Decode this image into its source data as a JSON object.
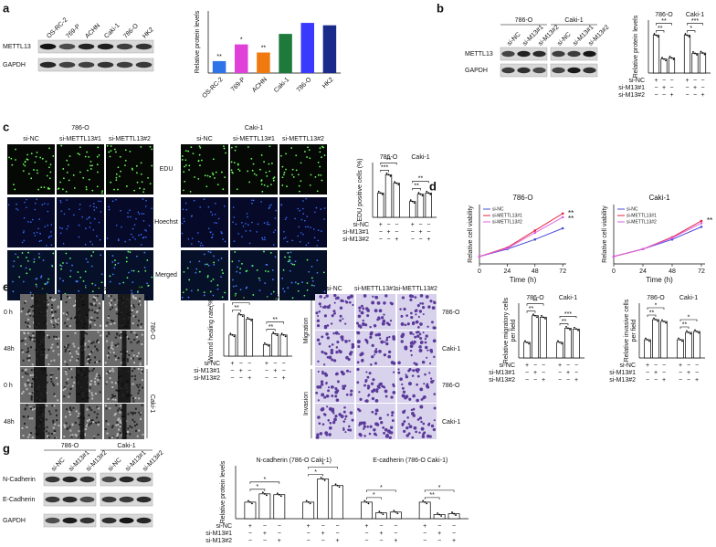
{
  "conditions": [
    {
      "name": "si-NC",
      "signs": [
        "+",
        "−",
        "−"
      ]
    },
    {
      "name": "si-M13#1",
      "signs": [
        "−",
        "+",
        "−"
      ]
    },
    {
      "name": "si-M13#2",
      "signs": [
        "−",
        "−",
        "+"
      ]
    }
  ],
  "a": {
    "label": "a",
    "blot": {
      "lanes": [
        "OS-RC-2",
        "769-P",
        "ACHN",
        "Caki-1",
        "786-O",
        "HK2"
      ],
      "rows": [
        "METTL13",
        "GAPDH"
      ]
    },
    "chart": {
      "type": "bar",
      "ylabel": "Relative protein levels",
      "categories": [
        "OS-RC-2",
        "769-P",
        "ACHN",
        "Caki-1",
        "786-O",
        "HK2"
      ],
      "values": [
        0.25,
        0.6,
        0.43,
        0.82,
        1.05,
        1.0
      ],
      "colors": [
        "#2e74e8",
        "#e040d8",
        "#f07a10",
        "#1e7a3a",
        "#3a3aff",
        "#1a2a8a"
      ],
      "stars": [
        "**",
        "*",
        "**",
        null,
        null,
        null
      ],
      "ylim": [
        0,
        1.3
      ]
    }
  },
  "b": {
    "label": "b",
    "blot": {
      "groups": [
        "786-O",
        "Caki-1"
      ],
      "lanes": [
        "si-NC",
        "si-M13#1",
        "si-M13#2"
      ],
      "rows": [
        "METTL13",
        "GAPDH"
      ]
    },
    "chart": {
      "type": "grouped-bar",
      "ylabel": "Relative protein levels",
      "groups": [
        "786-O",
        "Caki-1"
      ],
      "values": [
        [
          1.0,
          0.37,
          0.4
        ],
        [
          1.0,
          0.52,
          0.53
        ]
      ],
      "stars": [
        [
          "**",
          "**"
        ],
        [
          "*",
          "***"
        ]
      ],
      "ylim": [
        0,
        1.4
      ],
      "bar_fill": "#ffffff"
    }
  },
  "c": {
    "label": "c",
    "images": {
      "groups": [
        "786-O",
        "Caki-1"
      ],
      "columns": [
        "si-NC",
        "si-METTL13#1",
        "si-METTL13#2"
      ],
      "rows": [
        "EDU",
        "Hoechst",
        "Merged"
      ]
    },
    "chart": {
      "type": "grouped-bar",
      "ylabel": "EDU positive cells (%)",
      "groups": [
        "786-O",
        "Caki-1"
      ],
      "values": [
        [
          20,
          35,
          28
        ],
        [
          13,
          19,
          20
        ]
      ],
      "stars": [
        [
          "***",
          "**"
        ],
        [
          "**",
          "**"
        ]
      ],
      "ylim": [
        0,
        45
      ],
      "bar_fill": "#ffffff"
    }
  },
  "d": {
    "label": "d",
    "charts": [
      {
        "type": "line",
        "title": "786-O",
        "xlabel": "Time (h)",
        "ylabel": "Relative cell viability",
        "x": [
          0,
          24,
          48,
          72
        ],
        "xlim": [
          0,
          75
        ],
        "xticks": [
          0,
          24,
          48,
          72
        ],
        "ylim": [
          0,
          0.8
        ],
        "series": [
          {
            "name": "si-NC",
            "color": "#4a4ad8",
            "values": [
              0.1,
              0.2,
              0.33,
              0.48
            ]
          },
          {
            "name": "si-METTL13#1",
            "color": "#e02040",
            "values": [
              0.1,
              0.22,
              0.45,
              0.68
            ]
          },
          {
            "name": "si-METTL13#2",
            "color": "#e060e0",
            "values": [
              0.1,
              0.21,
              0.42,
              0.63
            ]
          }
        ],
        "stars": [
          "**",
          "**"
        ]
      },
      {
        "type": "line",
        "title": "Caki-1",
        "xlabel": "Time (h)",
        "ylabel": "Relative cell viability",
        "x": [
          0,
          24,
          48,
          72
        ],
        "xlim": [
          0,
          75
        ],
        "xticks": [
          0,
          24,
          48,
          72
        ],
        "ylim": [
          0,
          0.8
        ],
        "series": [
          {
            "name": "si-NC",
            "color": "#4a4ad8",
            "values": [
              0.1,
              0.2,
              0.33,
              0.5
            ]
          },
          {
            "name": "si-METTL13#1",
            "color": "#e02040",
            "values": [
              0.1,
              0.2,
              0.36,
              0.58
            ]
          },
          {
            "name": "si-METTL13#2",
            "color": "#e060e0",
            "values": [
              0.1,
              0.2,
              0.35,
              0.55
            ]
          }
        ],
        "stars": [
          "**"
        ]
      }
    ]
  },
  "e": {
    "label": "e",
    "images": {
      "columns": [
        "si-NC",
        "si-METTL13#1",
        "si-METTL13#2"
      ],
      "rows": [
        "0 h",
        "48h",
        "0 h",
        "48h"
      ],
      "sides": [
        "786-O",
        "Caki-1"
      ]
    },
    "chart": {
      "type": "grouped-bar",
      "ylabel": "Wound healing rate(%)",
      "groups": [
        "786-O",
        "Caki-1"
      ],
      "values": [
        [
          40,
          78,
          70
        ],
        [
          22,
          42,
          40
        ]
      ],
      "stars": [
        [
          "**",
          "**"
        ],
        [
          "**",
          "**"
        ]
      ],
      "ylim": [
        0,
        100
      ],
      "bar_fill": "#ffffff"
    }
  },
  "f": {
    "label": "f",
    "images": {
      "columns": [
        "si-NC",
        "si-METTL13#1",
        "si-METTL13#2"
      ],
      "rows": [
        "786-O",
        "Caki-1",
        "786-O",
        "Caki-1"
      ],
      "sides": [
        "Migration",
        "Invasion"
      ]
    },
    "charts": [
      {
        "type": "grouped-bar",
        "ylabel": [
          "Relative migratory cells",
          "per field"
        ],
        "groups": [
          "786-O",
          "Caki-1"
        ],
        "values": [
          [
            1.0,
            2.7,
            2.6
          ],
          [
            1.0,
            1.9,
            1.85
          ]
        ],
        "stars": [
          [
            "**",
            "**"
          ],
          [
            "**",
            "***"
          ]
        ],
        "ylim": [
          0,
          3.5
        ],
        "bar_fill": "#ffffff"
      },
      {
        "type": "grouped-bar",
        "ylabel": [
          "Relative invasive cells",
          "per field"
        ],
        "groups": [
          "786-O",
          "Caki-1"
        ],
        "values": [
          [
            1.0,
            2.1,
            2.0
          ],
          [
            1.0,
            1.4,
            1.45
          ]
        ],
        "stars": [
          [
            "**",
            "*"
          ],
          [
            "**",
            "*"
          ]
        ],
        "ylim": [
          0,
          3
        ],
        "bar_fill": "#ffffff"
      }
    ]
  },
  "g": {
    "label": "g",
    "blot": {
      "groups": [
        "786-O",
        "Caki-1"
      ],
      "lanes": [
        "si-NC",
        "si-M13#1",
        "si-M13#2"
      ],
      "rows": [
        "N-Cadherin",
        "E-Cadherin",
        "GAPDH"
      ]
    },
    "chart": {
      "type": "grouped-bar",
      "ylabel": "Relative protein levels",
      "titles": [
        "N-cadherin (786-O Caki-1)",
        "E-cadherin (786-O Caki-1)"
      ],
      "values": [
        [
          1.0,
          1.5,
          1.45
        ],
        [
          1.0,
          2.4,
          2.0
        ],
        [
          1.0,
          0.35,
          0.4
        ],
        [
          1.0,
          0.25,
          0.3
        ]
      ],
      "stars": [
        [
          "*",
          "*"
        ],
        [
          "*",
          "*"
        ],
        [
          "*",
          "*"
        ],
        [
          "**",
          "*"
        ]
      ],
      "ylim": [
        0,
        3.2
      ],
      "bar_fill": "#ffffff"
    }
  }
}
